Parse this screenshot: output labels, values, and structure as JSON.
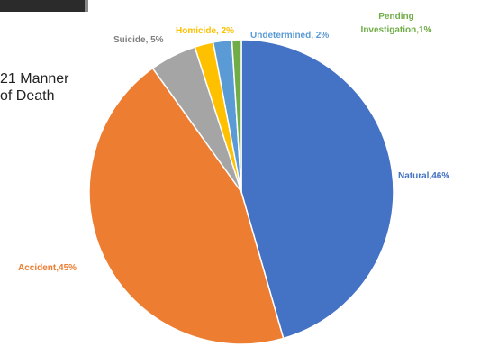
{
  "caption": {
    "line1": "21 Manner",
    "line2": "of Death"
  },
  "chart_data": {
    "type": "pie",
    "title": "",
    "slices": [
      {
        "label": "Natural",
        "value": 46,
        "text": "Natural,46%",
        "color": "#4472C4",
        "label_color": "#4472C4"
      },
      {
        "label": "Accident",
        "value": 45,
        "text": "Accident,45%",
        "color": "#ED7D31",
        "label_color": "#ED7D31"
      },
      {
        "label": "Suicide",
        "value": 5,
        "text": "Suicide, 5%",
        "color": "#A5A5A5",
        "label_color": "#7F7F7F"
      },
      {
        "label": "Homicide",
        "value": 2,
        "text": "Homicide, 2%",
        "color": "#FFC000",
        "label_color": "#FFC000"
      },
      {
        "label": "Undetermined",
        "value": 2,
        "text": "Undetermined, 2%",
        "color": "#5B9BD5",
        "label_color": "#5B9BD5"
      },
      {
        "label": "Pending Investigation",
        "value": 1,
        "text_lines": [
          "Pending",
          "Investigation,1%"
        ],
        "color": "#70AD47",
        "label_color": "#70AD47"
      }
    ]
  }
}
